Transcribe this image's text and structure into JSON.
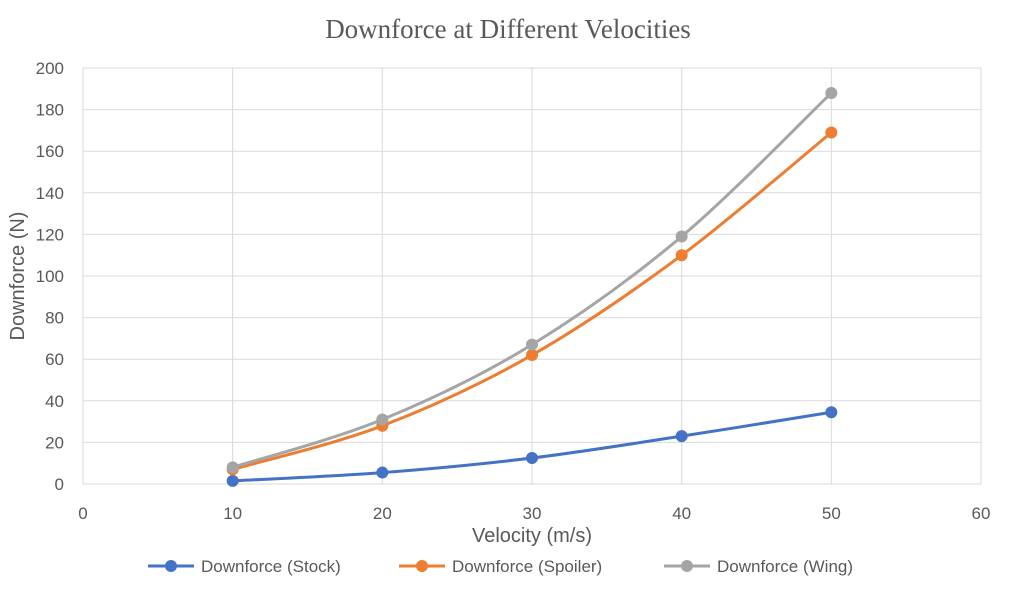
{
  "chart_data": {
    "type": "line",
    "title": "Downforce at Different Velocities",
    "xlabel": "Velocity (m/s)",
    "ylabel": "Downforce (N)",
    "xlim": [
      0,
      60
    ],
    "ylim": [
      0,
      200
    ],
    "xticks": [
      0,
      10,
      20,
      30,
      40,
      50,
      60
    ],
    "yticks": [
      0,
      20,
      40,
      60,
      80,
      100,
      120,
      140,
      160,
      180,
      200
    ],
    "grid": true,
    "legend_position": "bottom",
    "x": [
      10,
      20,
      30,
      40,
      50
    ],
    "series": [
      {
        "name": "Downforce (Stock)",
        "values": [
          1.5,
          5.5,
          12.5,
          23,
          34.5
        ],
        "color": "#4472c4"
      },
      {
        "name": "Downforce (Spoiler)",
        "values": [
          7,
          28,
          62,
          110,
          169
        ],
        "color": "#ed7d31"
      },
      {
        "name": "Downforce (Wing)",
        "values": [
          8,
          31,
          67,
          119,
          188
        ],
        "color": "#a5a5a5"
      }
    ]
  }
}
